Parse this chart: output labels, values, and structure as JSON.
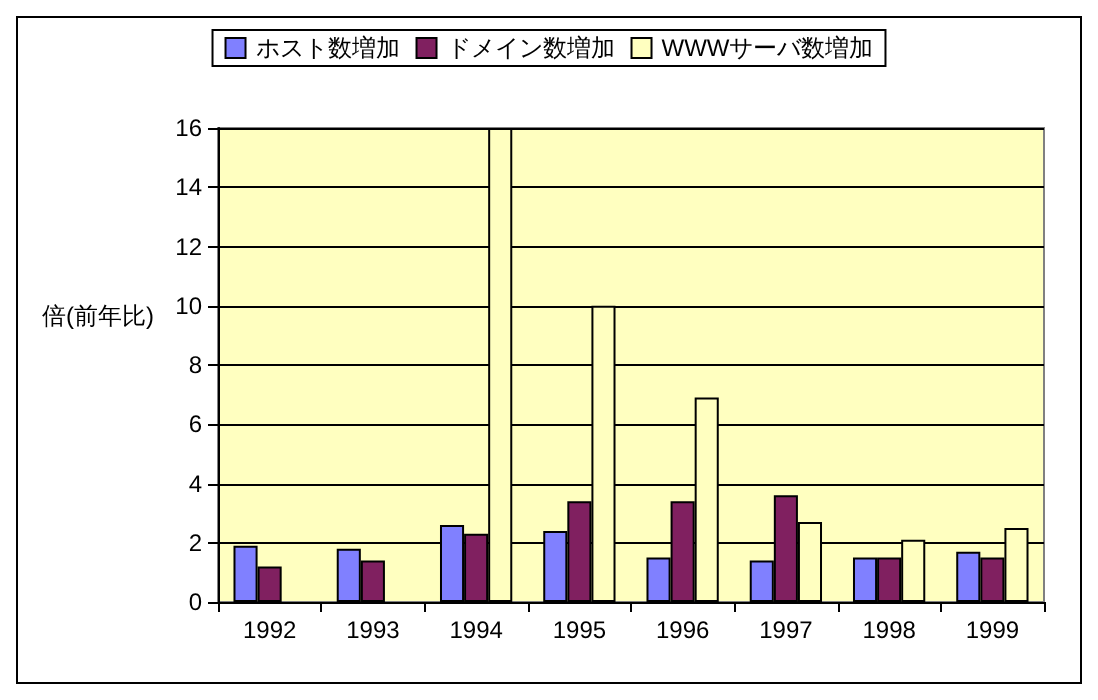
{
  "chart_data": {
    "type": "bar",
    "ylabel": "倍(前年比)",
    "categories": [
      "1992",
      "1993",
      "1994",
      "1995",
      "1996",
      "1997",
      "1998",
      "1999"
    ],
    "series": [
      {
        "name": "ホスト数増加",
        "color": "#8080ff",
        "values": [
          1.9,
          1.8,
          2.6,
          2.4,
          1.5,
          1.4,
          1.5,
          1.7
        ]
      },
      {
        "name": "ドメイン数増加",
        "color": "#802060",
        "values": [
          1.2,
          1.4,
          2.3,
          3.4,
          3.4,
          3.6,
          1.5,
          1.5
        ]
      },
      {
        "name": "WWWサーバ数増加",
        "color": "#ffffc0",
        "values": [
          0,
          0,
          16,
          10,
          6.9,
          2.7,
          2.1,
          2.5
        ]
      }
    ],
    "ylim": [
      0,
      16
    ],
    "yticks": [
      0,
      2,
      4,
      6,
      8,
      10,
      12,
      14,
      16
    ],
    "grid": "y",
    "legend": "top"
  }
}
